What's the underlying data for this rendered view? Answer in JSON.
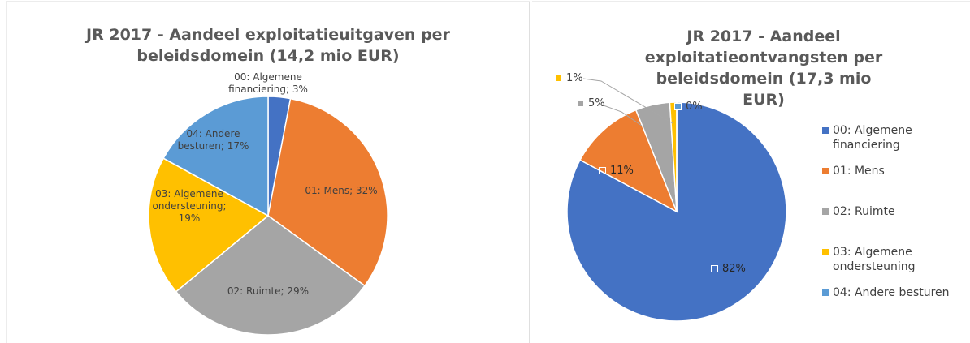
{
  "chart_data": [
    {
      "type": "pie",
      "title": "JR 2017 - Aandeel exploitatieuitgaven per beleidsdomein (14,2 mio EUR)",
      "values": [
        3,
        32,
        29,
        19,
        17
      ],
      "value_labels": [
        "00: Algemene financiering; 3%",
        "01: Mens; 32%",
        "02: Ruimte; 29%",
        "03: Algemene ondersteuning; 19%",
        "04: Andere besturen; 17%"
      ],
      "colors": [
        "#4472c4",
        "#ed7d31",
        "#a5a5a5",
        "#ffc000",
        "#5b9bd5"
      ]
    },
    {
      "type": "pie",
      "title": "JR 2017 - Aandeel exploitatieontvangsten per beleidsdomein (17,3 mio EUR)",
      "categories": [
        "00: Algemene financiering",
        "01: Mens",
        "02: Ruimte",
        "03: Algemene ondersteuning",
        "04: Andere besturen"
      ],
      "values": [
        82,
        11,
        5,
        1,
        0
      ],
      "value_labels": [
        "82%",
        "11%",
        "5%",
        "1%",
        "0%"
      ],
      "colors": [
        "#4472c4",
        "#ed7d31",
        "#a5a5a5",
        "#ffc000",
        "#5b9bd5"
      ],
      "legend": "right"
    }
  ]
}
